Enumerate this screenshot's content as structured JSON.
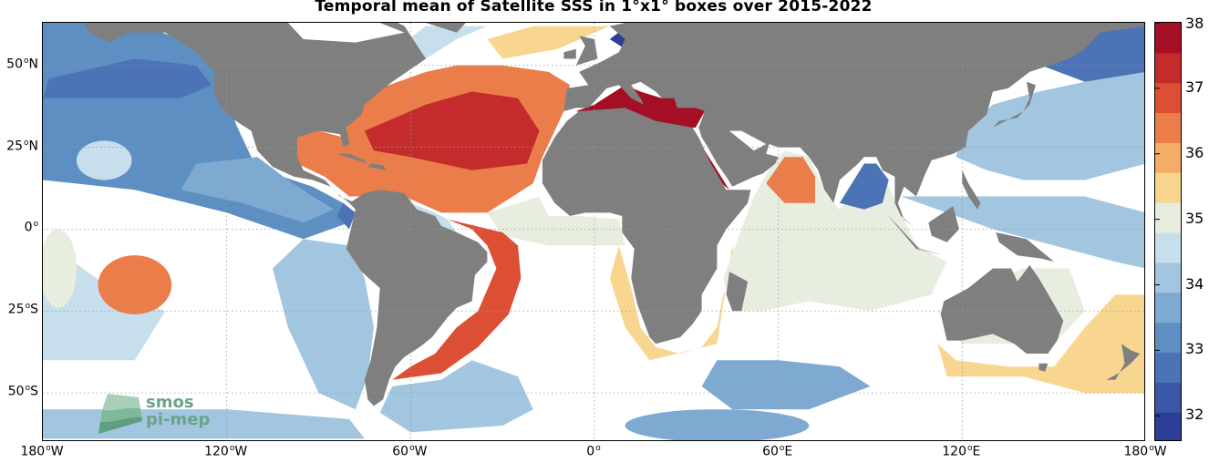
{
  "title": "Temporal mean of Satellite SSS in 1°x1° boxes over 2015-2022",
  "map": {
    "projection": "equirectangular",
    "lon_range": [
      -180,
      180
    ],
    "lat_range": [
      -65,
      63
    ],
    "grid": true,
    "land_color": "#7f7f7f",
    "no_data_color": "#ffffff",
    "x_ticks": [
      {
        "lon": -180,
        "label": "180",
        "hemi": "W"
      },
      {
        "lon": -120,
        "label": "120",
        "hemi": "W"
      },
      {
        "lon": -60,
        "label": "60",
        "hemi": "W"
      },
      {
        "lon": 0,
        "label": "0",
        "hemi": ""
      },
      {
        "lon": 60,
        "label": "60",
        "hemi": "E"
      },
      {
        "lon": 120,
        "label": "120",
        "hemi": "E"
      },
      {
        "lon": 180,
        "label": "180",
        "hemi": "W"
      }
    ],
    "y_ticks": [
      {
        "lat": 50,
        "label": "50",
        "hemi": "N"
      },
      {
        "lat": 25,
        "label": "25",
        "hemi": "N"
      },
      {
        "lat": 0,
        "label": "0",
        "hemi": ""
      },
      {
        "lat": -25,
        "label": "25",
        "hemi": "S"
      },
      {
        "lat": -50,
        "label": "50",
        "hemi": "S"
      }
    ]
  },
  "colorbar": {
    "min": 31.6,
    "max": 38,
    "ticks": [
      32,
      33,
      34,
      35,
      36,
      37,
      38
    ],
    "colors": [
      "#2c3e97",
      "#3b58a6",
      "#4b73b5",
      "#5e8fc3",
      "#7eaad2",
      "#a2c5e0",
      "#c7dfec",
      "#e8eedf",
      "#f8d690",
      "#f4ad66",
      "#eb7d4b",
      "#dc4f35",
      "#c42b2c",
      "#a50f26"
    ]
  },
  "logo": {
    "line1": "smos",
    "line2": "pi-mep"
  }
}
